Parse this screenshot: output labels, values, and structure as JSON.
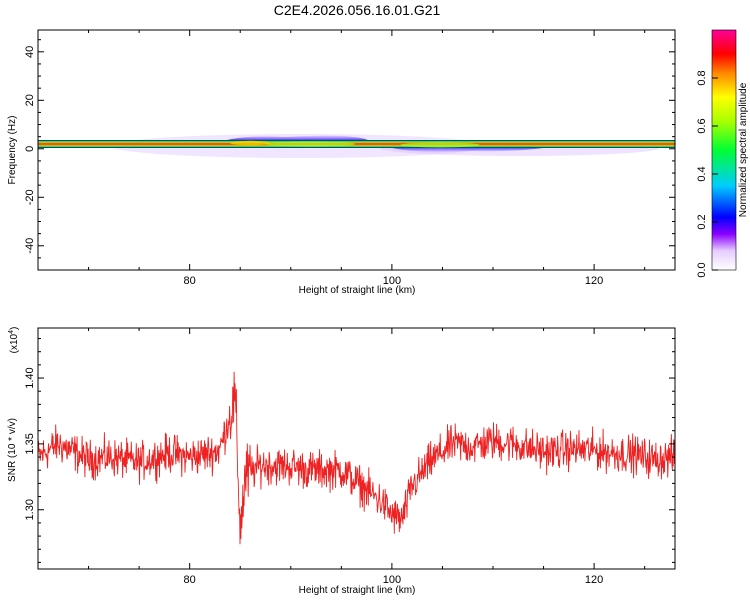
{
  "title": "C2E4.2026.056.16.01.G21",
  "chart_data": [
    {
      "type": "heatmap",
      "xlabel": "Height of straight line (km)",
      "ylabel": "Frequency (Hz)",
      "xlim": [
        65,
        128
      ],
      "ylim": [
        -50,
        49
      ],
      "xticks": [
        "80",
        "100",
        "120"
      ],
      "xtick_values": [
        80,
        100,
        120
      ],
      "yticks": [
        "40",
        "20",
        "0",
        "-20",
        "-40"
      ],
      "ytick_values": [
        40,
        20,
        0,
        -20,
        -40
      ],
      "description": "narrow high-amplitude line near 1 Hz across full height range; weaker broadening to about +5 Hz between 84 and 98 km and to about -3 Hz between 101 and 115 km",
      "colorbar": {
        "label": "Normalized spectral amplitude",
        "ticks": [
          "0.0",
          "0.2",
          "0.4",
          "0.6",
          "0.8"
        ],
        "tick_values": [
          0.0,
          0.2,
          0.4,
          0.6,
          0.8
        ],
        "range": [
          0,
          1
        ]
      }
    },
    {
      "type": "line",
      "xlabel": "Height of straight line (km)",
      "ylabel": "SNR (10 * v/v)",
      "scale_label": "(x10",
      "scale_exp": "4",
      "scale_close": ")",
      "xlim": [
        65,
        128
      ],
      "ylim": [
        1.255,
        1.438
      ],
      "xticks": [
        "80",
        "100",
        "120"
      ],
      "xtick_values": [
        80,
        100,
        120
      ],
      "yticks": [
        "1.40",
        "1.35",
        "1.30"
      ],
      "ytick_values": [
        1.4,
        1.35,
        1.3
      ],
      "color": "#ee2222",
      "series": [
        {
          "x": [
            65,
            67,
            70,
            72,
            75,
            78,
            80,
            82,
            83,
            84,
            84.5,
            85,
            85.5,
            87,
            90,
            92,
            95,
            97,
            99,
            100,
            101,
            102,
            104,
            106,
            108,
            110,
            112,
            115,
            118,
            120,
            122,
            124,
            126,
            128
          ],
          "y": [
            1.34,
            1.35,
            1.338,
            1.34,
            1.336,
            1.343,
            1.34,
            1.343,
            1.346,
            1.372,
            1.385,
            1.285,
            1.325,
            1.334,
            1.333,
            1.33,
            1.33,
            1.318,
            1.306,
            1.296,
            1.292,
            1.318,
            1.338,
            1.35,
            1.348,
            1.352,
            1.35,
            1.344,
            1.346,
            1.345,
            1.343,
            1.342,
            1.338,
            1.34
          ]
        }
      ]
    }
  ]
}
